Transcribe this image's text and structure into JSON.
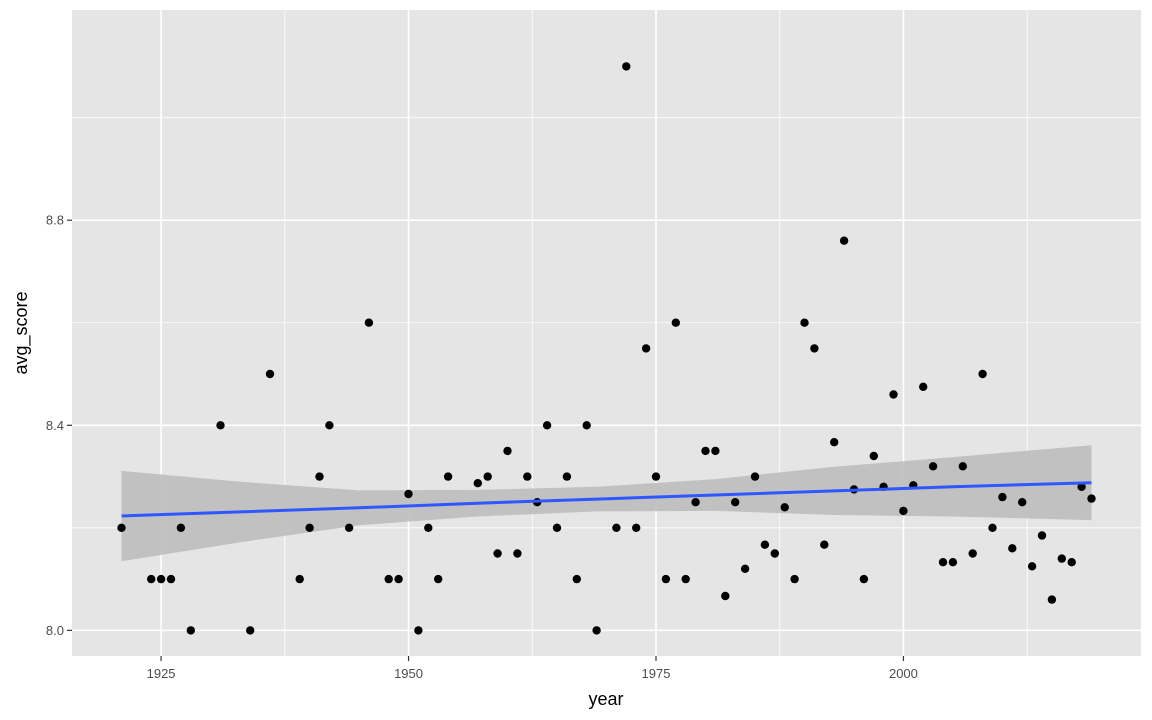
{
  "colors": {
    "panel_bg": "#e5e5e5",
    "grid_major": "#ffffff",
    "point": "#000000",
    "trend_line": "#3056ff",
    "confidence_band": "#bdbdbd"
  },
  "chart_data": {
    "type": "scatter",
    "title": "",
    "xlabel": "year",
    "ylabel": "avg_score",
    "xlim": [
      1916,
      2024
    ],
    "ylim": [
      7.95,
      9.21
    ],
    "grid": true,
    "legend": "none",
    "x_ticks": [
      1925,
      1950,
      1975,
      2000
    ],
    "x_tick_labels": [
      "1925",
      "1950",
      "1975",
      "2000"
    ],
    "y_ticks": [
      8.0,
      8.4,
      8.8
    ],
    "y_tick_labels": [
      "8.0",
      "8.4",
      "8.8"
    ],
    "series": [
      {
        "points": [
          [
            1921,
            8.2
          ],
          [
            1924,
            8.1
          ],
          [
            1925,
            8.1
          ],
          [
            1926,
            8.1
          ],
          [
            1927,
            8.2
          ],
          [
            1928,
            8.0
          ],
          [
            1931,
            8.4
          ],
          [
            1934,
            8.0
          ],
          [
            1936,
            8.5
          ],
          [
            1939,
            8.1
          ],
          [
            1940,
            8.2
          ],
          [
            1941,
            8.3
          ],
          [
            1942,
            8.4
          ],
          [
            1944,
            8.2
          ],
          [
            1946,
            8.6
          ],
          [
            1948,
            8.1
          ],
          [
            1949,
            8.1
          ],
          [
            1950,
            8.266
          ],
          [
            1951,
            8.0
          ],
          [
            1952,
            8.2
          ],
          [
            1953,
            8.1
          ],
          [
            1954,
            8.3
          ],
          [
            1957,
            8.287
          ],
          [
            1958,
            8.3
          ],
          [
            1959,
            8.15
          ],
          [
            1960,
            8.35
          ],
          [
            1961,
            8.15
          ],
          [
            1962,
            8.3
          ],
          [
            1963,
            8.25
          ],
          [
            1964,
            8.4
          ],
          [
            1965,
            8.2
          ],
          [
            1966,
            8.3
          ],
          [
            1967,
            8.1
          ],
          [
            1968,
            8.4
          ],
          [
            1969,
            8.0
          ],
          [
            1971,
            8.2
          ],
          [
            1972,
            9.1
          ],
          [
            1973,
            8.2
          ],
          [
            1974,
            8.55
          ],
          [
            1975,
            8.3
          ],
          [
            1976,
            8.1
          ],
          [
            1977,
            8.6
          ],
          [
            1978,
            8.1
          ],
          [
            1979,
            8.25
          ],
          [
            1980,
            8.35
          ],
          [
            1981,
            8.35
          ],
          [
            1982,
            8.067
          ],
          [
            1983,
            8.25
          ],
          [
            1984,
            8.12
          ],
          [
            1985,
            8.3
          ],
          [
            1986,
            8.167
          ],
          [
            1987,
            8.15
          ],
          [
            1988,
            8.24
          ],
          [
            1989,
            8.1
          ],
          [
            1990,
            8.6
          ],
          [
            1991,
            8.55
          ],
          [
            1992,
            8.167
          ],
          [
            1993,
            8.367
          ],
          [
            1994,
            8.76
          ],
          [
            1995,
            8.275
          ],
          [
            1996,
            8.1
          ],
          [
            1997,
            8.34
          ],
          [
            1998,
            8.28
          ],
          [
            1999,
            8.46
          ],
          [
            2000,
            8.233
          ],
          [
            2001,
            8.283
          ],
          [
            2002,
            8.475
          ],
          [
            2003,
            8.32
          ],
          [
            2004,
            8.133
          ],
          [
            2005,
            8.133
          ],
          [
            2006,
            8.32
          ],
          [
            2007,
            8.15
          ],
          [
            2008,
            8.5
          ],
          [
            2009,
            8.2
          ],
          [
            2010,
            8.26
          ],
          [
            2011,
            8.16
          ],
          [
            2012,
            8.25
          ],
          [
            2013,
            8.125
          ],
          [
            2014,
            8.185
          ],
          [
            2015,
            8.06
          ],
          [
            2016,
            8.14
          ],
          [
            2017,
            8.133
          ],
          [
            2018,
            8.28
          ],
          [
            2019,
            8.257
          ]
        ]
      }
    ],
    "trend": {
      "method": "linear fit with 95% confidence band",
      "x": [
        1921,
        1933,
        1945,
        1957,
        1969,
        1981,
        1993,
        2005,
        2019
      ],
      "y": [
        8.223,
        8.231,
        8.239,
        8.248,
        8.256,
        8.264,
        8.272,
        8.28,
        8.288
      ],
      "lower": [
        8.135,
        8.172,
        8.205,
        8.222,
        8.232,
        8.233,
        8.225,
        8.222,
        8.215
      ],
      "upper": [
        8.311,
        8.29,
        8.273,
        8.274,
        8.28,
        8.295,
        8.319,
        8.338,
        8.361
      ]
    }
  }
}
